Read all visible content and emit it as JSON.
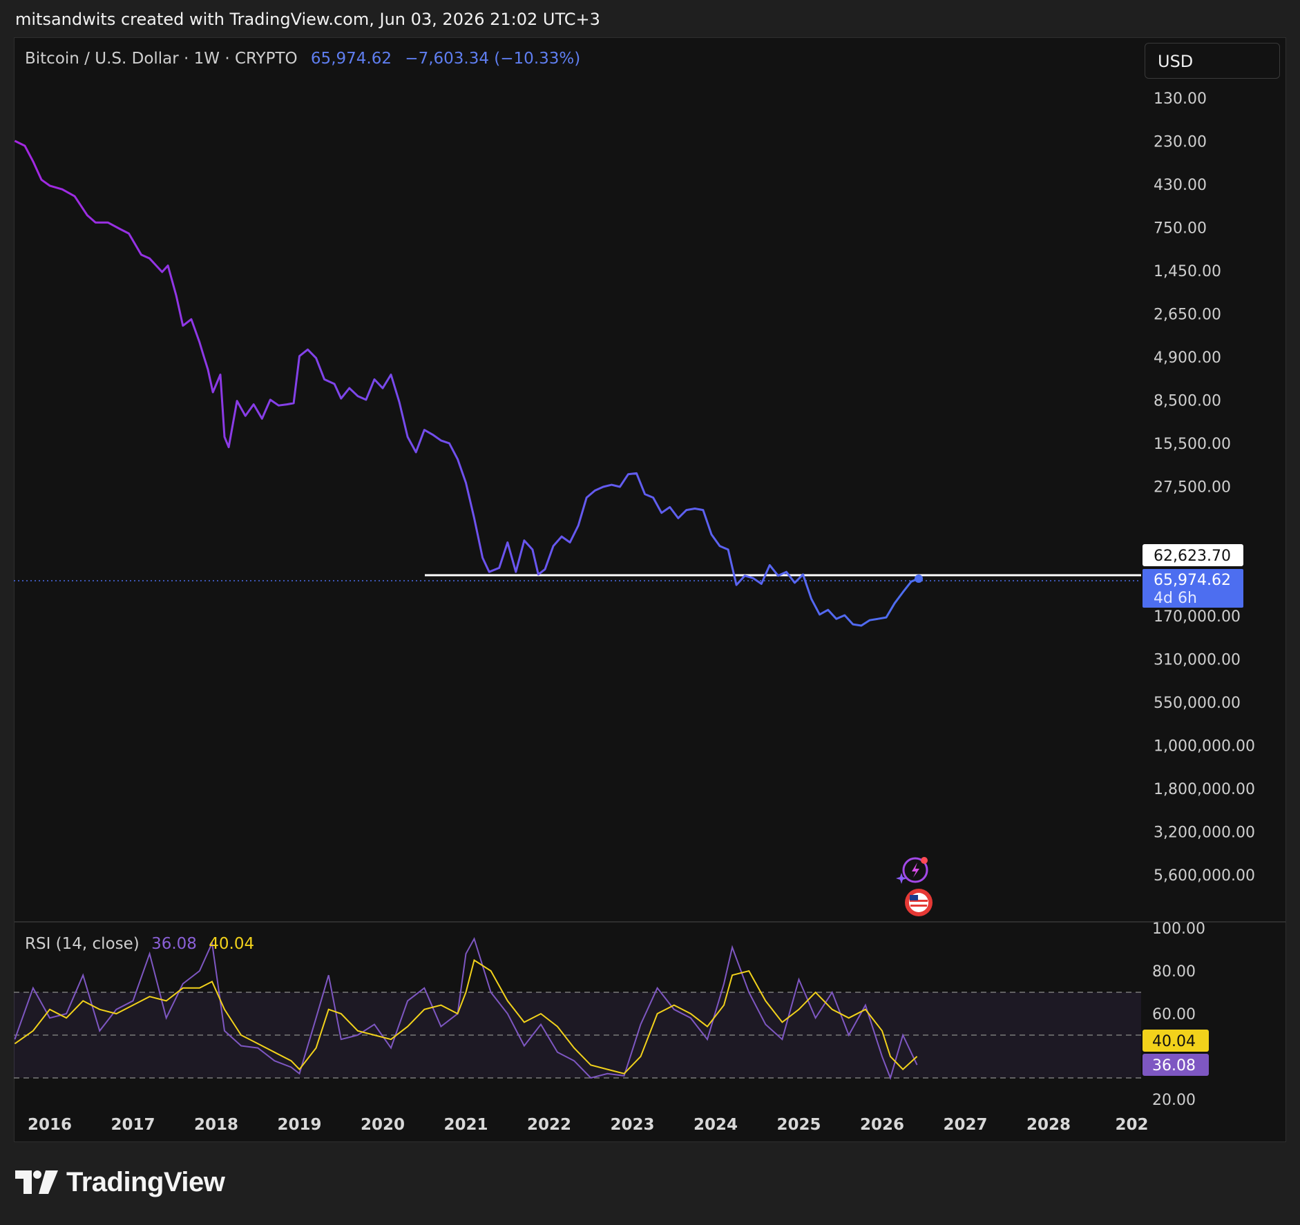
{
  "header": {
    "attribution": "mitsandwits created with TradingView.com, Jun 03, 2026 21:02 UTC+3"
  },
  "legend": {
    "symbol": "Bitcoin / U.S. Dollar · 1W · CRYPTO",
    "price": "65,974.62",
    "change": "−7,603.34 (−10.33%)"
  },
  "currency_button": "USD",
  "price_badges": {
    "line_level": "62,623.70",
    "last_price": "65,974.62",
    "countdown": "4d 6h"
  },
  "rsi": {
    "label": "RSI (14, close)",
    "rsi_value": "36.08",
    "ma_value": "40.04",
    "axis_ticks": [
      "100.00",
      "80.00",
      "60.00",
      "20.00"
    ],
    "band_upper": 70,
    "band_mid": 50,
    "band_lower": 30
  },
  "brand": "TradingView",
  "colors": {
    "background": "#121212",
    "price_line_start": "#a427e0",
    "price_line_end": "#4d6ef0",
    "rsi_line": "#7e57c2",
    "rsi_ma": "#f2d21b",
    "horizontal_line": "#ffffff"
  },
  "icons": [
    "lightning-sparkle-icon",
    "us-flag-icon",
    "tradingview-logo-icon"
  ],
  "chart_data": [
    {
      "type": "line",
      "title": "Bitcoin / U.S. Dollar · 1W · CRYPTO",
      "y_scale": "log, inverted",
      "y_ticks": [
        "130.00",
        "230.00",
        "430.00",
        "750.00",
        "1,450.00",
        "2,650.00",
        "4,900.00",
        "8,500.00",
        "15,500.00",
        "27,500.00",
        "170,000.00",
        "310,000.00",
        "550,000.00",
        "1,000,000.00",
        "1,800,000.00",
        "3,200,000.00",
        "5,600,000.00"
      ],
      "x_ticks": [
        "2016",
        "2017",
        "2018",
        "2019",
        "2020",
        "2021",
        "2022",
        "2023",
        "2024",
        "2025",
        "2026",
        "2027",
        "2028",
        "202"
      ],
      "horizontal_line": 62623.7,
      "last_price": 65974.62,
      "series": [
        {
          "x": [
            2015.58,
            2015.7,
            2015.8,
            2015.9,
            2016.0,
            2016.15,
            2016.3,
            2016.45,
            2016.55,
            2016.7,
            2016.85,
            2016.95,
            2017.1,
            2017.2,
            2017.35,
            2017.42,
            2017.52,
            2017.6,
            2017.7,
            2017.8,
            2017.85,
            2017.9,
            2017.96,
            2018.05,
            2018.1,
            2018.15,
            2018.25,
            2018.35,
            2018.45,
            2018.55,
            2018.65,
            2018.75,
            2018.85,
            2018.93,
            2019.0,
            2019.1,
            2019.2,
            2019.3,
            2019.42,
            2019.5,
            2019.6,
            2019.7,
            2019.8,
            2019.9,
            2020.0,
            2020.1,
            2020.2,
            2020.3,
            2020.4,
            2020.5,
            2020.6,
            2020.7,
            2020.8,
            2020.9,
            2021.0,
            2021.1,
            2021.2,
            2021.28,
            2021.4,
            2021.5,
            2021.6,
            2021.7,
            2021.8,
            2021.87,
            2021.95,
            2022.05,
            2022.15,
            2022.25,
            2022.35,
            2022.45,
            2022.55,
            2022.65,
            2022.75,
            2022.85,
            2022.95,
            2023.05,
            2023.15,
            2023.25,
            2023.35,
            2023.45,
            2023.55,
            2023.65,
            2023.75,
            2023.85,
            2023.95,
            2024.05,
            2024.15,
            2024.25,
            2024.35,
            2024.45,
            2024.55,
            2024.65,
            2024.75,
            2024.85,
            2024.95,
            2025.05,
            2025.15,
            2025.25,
            2025.35,
            2025.45,
            2025.55,
            2025.65,
            2025.75,
            2025.85,
            2025.95,
            2026.05,
            2026.15,
            2026.25,
            2026.35,
            2026.42
          ],
          "y": [
            230,
            245,
            300,
            380,
            410,
            430,
            470,
            600,
            660,
            660,
            720,
            760,
            1000,
            1050,
            1250,
            1150,
            1700,
            2500,
            2300,
            3100,
            3700,
            4400,
            5900,
            4700,
            10500,
            12000,
            6600,
            8000,
            6900,
            8300,
            6500,
            7000,
            6900,
            6800,
            3700,
            3400,
            3800,
            5000,
            5300,
            6400,
            5600,
            6200,
            6500,
            5000,
            5600,
            4700,
            6700,
            10500,
            12800,
            9600,
            10200,
            11000,
            11400,
            14000,
            19000,
            30000,
            50000,
            60000,
            57000,
            41000,
            60000,
            40000,
            45000,
            62000,
            58000,
            43000,
            38000,
            41000,
            33000,
            23000,
            21000,
            20000,
            19500,
            20000,
            17000,
            16800,
            22000,
            23000,
            28000,
            26000,
            30000,
            27000,
            26500,
            27000,
            37000,
            43000,
            45000,
            71000,
            63000,
            65000,
            70000,
            55000,
            63000,
            60000,
            69000,
            62000,
            85000,
            104000,
            98000,
            110000,
            105000,
            118000,
            120000,
            112000,
            110000,
            108000,
            90000,
            78000,
            68000,
            65974.62
          ]
        }
      ]
    },
    {
      "type": "line",
      "title": "RSI (14, close)",
      "ylim": [
        0,
        100
      ],
      "bands": [
        30,
        50,
        70
      ],
      "series": [
        {
          "name": "RSI",
          "x": [
            2015.58,
            2015.8,
            2016.0,
            2016.2,
            2016.4,
            2016.6,
            2016.8,
            2017.0,
            2017.2,
            2017.4,
            2017.6,
            2017.8,
            2017.95,
            2018.1,
            2018.3,
            2018.5,
            2018.7,
            2018.9,
            2019.0,
            2019.2,
            2019.35,
            2019.5,
            2019.7,
            2019.9,
            2020.1,
            2020.3,
            2020.5,
            2020.7,
            2020.9,
            2021.0,
            2021.1,
            2021.3,
            2021.5,
            2021.7,
            2021.9,
            2022.1,
            2022.3,
            2022.5,
            2022.7,
            2022.9,
            2023.1,
            2023.3,
            2023.5,
            2023.7,
            2023.9,
            2024.1,
            2024.2,
            2024.4,
            2024.6,
            2024.8,
            2025.0,
            2025.2,
            2025.4,
            2025.6,
            2025.8,
            2026.0,
            2026.1,
            2026.25,
            2026.42
          ],
          "values": [
            48,
            72,
            58,
            60,
            78,
            52,
            62,
            66,
            88,
            58,
            74,
            80,
            93,
            52,
            45,
            44,
            38,
            35,
            32,
            58,
            78,
            48,
            50,
            55,
            44,
            66,
            72,
            54,
            60,
            88,
            95,
            70,
            60,
            45,
            55,
            42,
            38,
            30,
            32,
            31,
            55,
            72,
            62,
            58,
            48,
            74,
            91,
            70,
            55,
            48,
            76,
            58,
            70,
            50,
            64,
            40,
            30,
            50,
            36.08
          ]
        },
        {
          "name": "RSI-based MA",
          "x": [
            2015.58,
            2015.8,
            2016.0,
            2016.2,
            2016.4,
            2016.6,
            2016.8,
            2017.0,
            2017.2,
            2017.4,
            2017.6,
            2017.8,
            2017.95,
            2018.1,
            2018.3,
            2018.5,
            2018.7,
            2018.9,
            2019.0,
            2019.2,
            2019.35,
            2019.5,
            2019.7,
            2019.9,
            2020.1,
            2020.3,
            2020.5,
            2020.7,
            2020.9,
            2021.0,
            2021.1,
            2021.3,
            2021.5,
            2021.7,
            2021.9,
            2022.1,
            2022.3,
            2022.5,
            2022.7,
            2022.9,
            2023.1,
            2023.3,
            2023.5,
            2023.7,
            2023.9,
            2024.1,
            2024.2,
            2024.4,
            2024.6,
            2024.8,
            2025.0,
            2025.2,
            2025.4,
            2025.6,
            2025.8,
            2026.0,
            2026.1,
            2026.25,
            2026.42
          ],
          "values": [
            46,
            52,
            62,
            58,
            66,
            62,
            60,
            64,
            68,
            66,
            72,
            72,
            75,
            62,
            50,
            46,
            42,
            38,
            34,
            44,
            62,
            60,
            52,
            50,
            48,
            54,
            62,
            64,
            60,
            70,
            85,
            80,
            66,
            56,
            60,
            54,
            44,
            36,
            34,
            32,
            40,
            60,
            64,
            60,
            54,
            64,
            78,
            80,
            66,
            56,
            62,
            70,
            62,
            58,
            62,
            52,
            40,
            34,
            40.04
          ]
        }
      ]
    }
  ]
}
